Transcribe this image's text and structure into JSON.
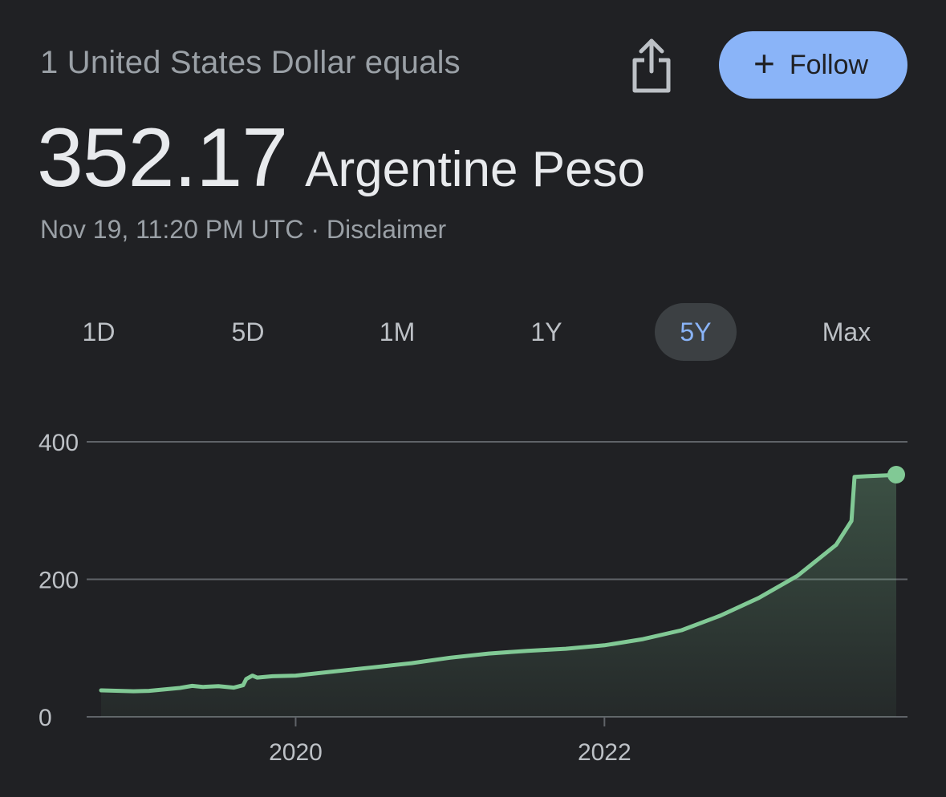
{
  "header": {
    "heading": "1 United States Dollar equals",
    "value": "352.17",
    "unit": "Argentine Peso",
    "timestamp": "Nov 19, 11:20 PM UTC",
    "separator": "·",
    "disclaimer": "Disclaimer",
    "share_icon": "share-icon",
    "follow": {
      "label": "Follow",
      "icon": "plus-icon"
    }
  },
  "tabs": [
    {
      "label": "1D",
      "active": false
    },
    {
      "label": "5D",
      "active": false
    },
    {
      "label": "1M",
      "active": false
    },
    {
      "label": "1Y",
      "active": false
    },
    {
      "label": "5Y",
      "active": true
    },
    {
      "label": "Max",
      "active": false
    }
  ],
  "colors": {
    "background": "#202124",
    "line": "#81c995",
    "accent": "#8ab4f8",
    "grid": "#5f6368",
    "text_muted": "#9aa0a6"
  },
  "chart_data": {
    "type": "area",
    "xlabel": "",
    "ylabel": "",
    "ylim": [
      0,
      400
    ],
    "y_ticks": [
      "0",
      "200",
      "400"
    ],
    "x_ticks": [
      "2020",
      "2022"
    ],
    "grid": true,
    "series": [
      {
        "values": [
          [
            2018.74,
            38.5
          ],
          [
            2018.95,
            37.2
          ],
          [
            2019.05,
            37.8
          ],
          [
            2019.25,
            42.0
          ],
          [
            2019.33,
            45.0
          ],
          [
            2019.4,
            43.5
          ],
          [
            2019.5,
            44.5
          ],
          [
            2019.6,
            42.5
          ],
          [
            2019.66,
            46.0
          ],
          [
            2019.68,
            55.0
          ],
          [
            2019.72,
            60.0
          ],
          [
            2019.75,
            57.0
          ],
          [
            2019.85,
            59.0
          ],
          [
            2020.0,
            60.0
          ],
          [
            2020.25,
            66.0
          ],
          [
            2020.5,
            72.0
          ],
          [
            2020.75,
            78.0
          ],
          [
            2021.0,
            86.0
          ],
          [
            2021.25,
            92.0
          ],
          [
            2021.5,
            96.0
          ],
          [
            2021.75,
            99.0
          ],
          [
            2022.0,
            104.0
          ],
          [
            2022.25,
            113.0
          ],
          [
            2022.5,
            126.0
          ],
          [
            2022.75,
            147.0
          ],
          [
            2023.0,
            173.0
          ],
          [
            2023.25,
            205.0
          ],
          [
            2023.5,
            250.0
          ],
          [
            2023.6,
            285.0
          ],
          [
            2023.62,
            349.0
          ],
          [
            2023.7,
            350.0
          ],
          [
            2023.85,
            351.5
          ],
          [
            2023.89,
            352.17
          ]
        ]
      }
    ]
  }
}
